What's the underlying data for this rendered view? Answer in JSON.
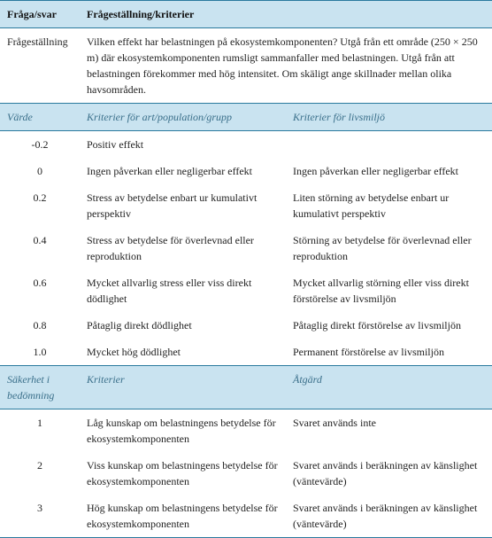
{
  "colors": {
    "header_bg": "#c9e3f0",
    "rule": "#2a7a9e",
    "italic_text": "#3a6f8a",
    "body_text": "#222222",
    "page_bg": "#ffffff"
  },
  "fonts": {
    "body_family": "Georgia",
    "body_size_pt": 9
  },
  "header": {
    "col1": "Fråga/svar",
    "col2": "Frågeställning/kriterier"
  },
  "question": {
    "label": "Frågeställning",
    "text": "Vilken effekt har belastningen på ekosystemkomponenten? Utgå från ett område (250 × 250 m) där ekosystemkomponenten rumsligt sammanfaller med belastningen. Utgå från att belastningen förekommer med hög intensitet. Om skäligt ange skillnader mellan olika havsområden."
  },
  "sub1": {
    "c1": "Värde",
    "c2": "Kriterier för art/population/grupp",
    "c3": "Kriterier för livsmiljö"
  },
  "rows1": [
    {
      "v": "-0.2",
      "a": "Positiv effekt",
      "b": ""
    },
    {
      "v": "0",
      "a": "Ingen påverkan eller negligerbar effekt",
      "b": "Ingen påverkan eller negligerbar effekt"
    },
    {
      "v": "0.2",
      "a": "Stress av betydelse enbart ur kumulativt perspektiv",
      "b": "Liten störning av betydelse enbart ur kumulativt perspektiv"
    },
    {
      "v": "0.4",
      "a": "Stress av betydelse för överlevnad eller reproduktion",
      "b": "Störning av betydelse för överlevnad eller reproduktion"
    },
    {
      "v": "0.6",
      "a": "Mycket allvarlig stress eller viss direkt dödlighet",
      "b": "Mycket allvarlig störning eller viss direkt förstörelse av livsmiljön"
    },
    {
      "v": "0.8",
      "a": "Påtaglig direkt dödlighet",
      "b": "Påtaglig direkt förstörelse av livsmiljön"
    },
    {
      "v": "1.0",
      "a": "Mycket hög dödlighet",
      "b": "Permanent förstörelse av livsmiljön"
    }
  ],
  "sub2": {
    "c1": "Säkerhet i bedömning",
    "c2": "Kriterier",
    "c3": "Åtgärd"
  },
  "rows2": [
    {
      "v": "1",
      "a": "Låg kunskap om belastningens betydelse för ekosystemkomponenten",
      "b": "Svaret används inte"
    },
    {
      "v": "2",
      "a": "Viss kunskap om belastningens betydelse för ekosystemkomponenten",
      "b": "Svaret används i beräkningen av känslighet (väntevärde)"
    },
    {
      "v": "3",
      "a": "Hög kunskap om belastningens betydelse för ekosystemkomponenten",
      "b": "Svaret används i beräkningen av känslighet (väntevärde)"
    }
  ]
}
